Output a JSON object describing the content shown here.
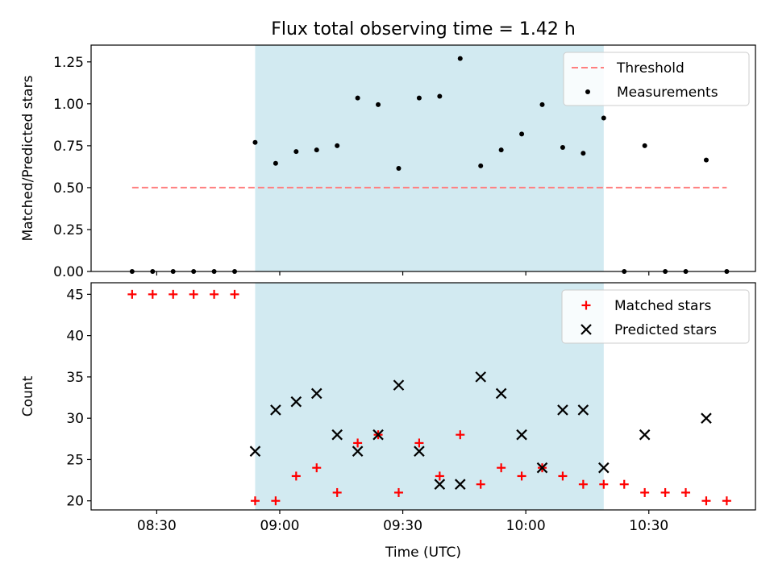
{
  "figure": {
    "title": "Flux total observing time = 1.42 h"
  },
  "chart_data": [
    {
      "type": "scatter",
      "ylabel": "Matched/Predicted stars",
      "ylim": [
        0,
        1.35
      ],
      "xlim": [
        "08:14",
        "10:56"
      ],
      "yticks": [
        0.0,
        0.25,
        0.5,
        0.75,
        1.0,
        1.25
      ],
      "ytick_labels": [
        "0.00",
        "0.25",
        "0.50",
        "0.75",
        "1.00",
        "1.25"
      ],
      "shaded_interval": [
        "08:54",
        "10:19"
      ],
      "shade_color": "#add8e6",
      "threshold": {
        "name": "Threshold",
        "value": 0.5,
        "x_range": [
          "08:24",
          "10:49"
        ],
        "color": "#ff7f7f"
      },
      "series": [
        {
          "name": "Measurements",
          "color": "#000000",
          "x": [
            "08:24",
            "08:29",
            "08:34",
            "08:39",
            "08:44",
            "08:49",
            "08:54",
            "08:59",
            "09:04",
            "09:09",
            "09:14",
            "09:19",
            "09:24",
            "09:29",
            "09:34",
            "09:39",
            "09:44",
            "09:49",
            "09:54",
            "09:59",
            "10:04",
            "10:09",
            "10:14",
            "10:19",
            "10:24",
            "10:29",
            "10:34",
            "10:39",
            "10:44",
            "10:49"
          ],
          "y": [
            0,
            0,
            0,
            0,
            0,
            0,
            0.77,
            0.645,
            0.715,
            0.725,
            0.75,
            1.035,
            0.995,
            0.615,
            1.035,
            1.045,
            1.27,
            0.63,
            0.725,
            0.82,
            0.995,
            0.74,
            0.705,
            0.915,
            0,
            0.75,
            0,
            0,
            0.665,
            0
          ]
        }
      ],
      "legend": {
        "position": "top-right",
        "entries": [
          "Threshold",
          "Measurements"
        ]
      }
    },
    {
      "type": "scatter",
      "ylabel": "Count",
      "xlabel": "Time (UTC)",
      "ylim": [
        18.9,
        46.4
      ],
      "xlim": [
        "08:14",
        "10:56"
      ],
      "yticks": [
        20,
        25,
        30,
        35,
        40,
        45
      ],
      "ytick_labels": [
        "20",
        "25",
        "30",
        "35",
        "40",
        "45"
      ],
      "xticks": [
        "08:30",
        "09:00",
        "09:30",
        "10:00",
        "10:30"
      ],
      "xtick_labels": [
        "08:30",
        "09:00",
        "09:30",
        "10:00",
        "10:30"
      ],
      "shaded_interval": [
        "08:54",
        "10:19"
      ],
      "shade_color": "#add8e6",
      "series": [
        {
          "name": "Matched stars",
          "marker": "plus",
          "color": "#ff0000",
          "x": [
            "08:24",
            "08:29",
            "08:34",
            "08:39",
            "08:44",
            "08:49",
            "08:54",
            "08:59",
            "09:04",
            "09:09",
            "09:14",
            "09:19",
            "09:24",
            "09:29",
            "09:34",
            "09:39",
            "09:44",
            "09:49",
            "09:54",
            "09:59",
            "10:04",
            "10:09",
            "10:14",
            "10:19",
            "10:24",
            "10:29",
            "10:34",
            "10:39",
            "10:44",
            "10:49"
          ],
          "y": [
            45,
            45,
            45,
            45,
            45,
            45,
            20,
            20,
            23,
            24,
            21,
            27,
            28,
            21,
            27,
            23,
            28,
            22,
            24,
            23,
            24,
            23,
            22,
            22,
            22,
            21,
            21,
            21,
            20,
            20
          ]
        },
        {
          "name": "Predicted stars",
          "marker": "x",
          "color": "#000000",
          "x": [
            "08:54",
            "08:59",
            "09:04",
            "09:09",
            "09:14",
            "09:19",
            "09:24",
            "09:29",
            "09:34",
            "09:39",
            "09:44",
            "09:49",
            "09:54",
            "09:59",
            "10:04",
            "10:09",
            "10:14",
            "10:19",
            "10:29",
            "10:44"
          ],
          "y": [
            26,
            31,
            32,
            33,
            28,
            26,
            28,
            34,
            26,
            22,
            22,
            35,
            33,
            28,
            24,
            31,
            31,
            24,
            28,
            30
          ]
        }
      ],
      "legend": {
        "position": "top-right",
        "entries": [
          "Matched stars",
          "Predicted stars"
        ]
      }
    }
  ]
}
